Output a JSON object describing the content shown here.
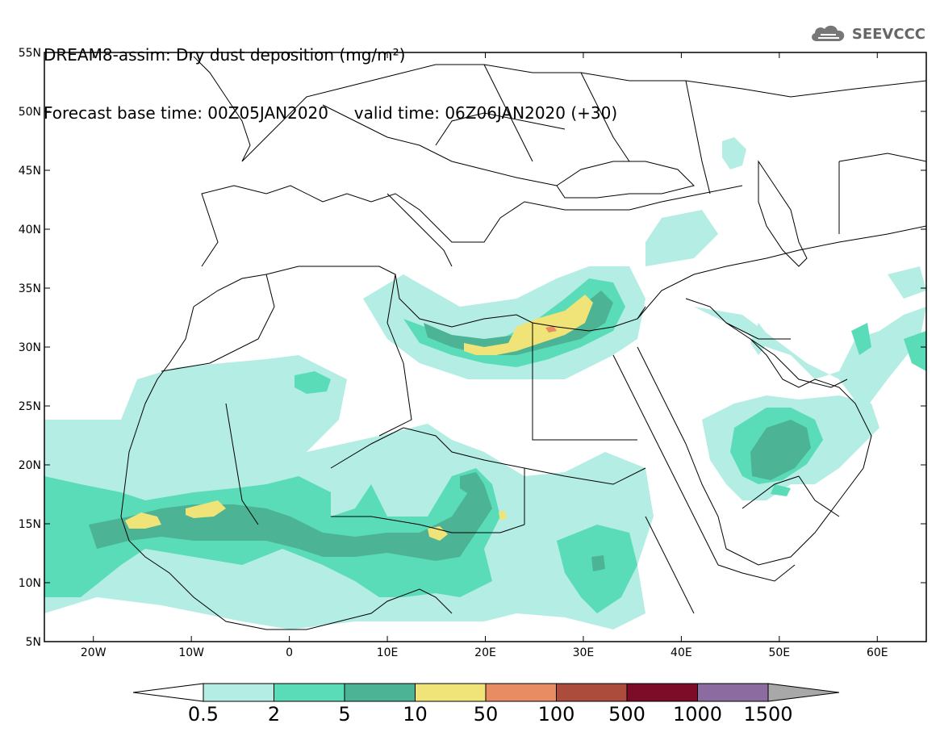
{
  "header": {
    "title": "DREAM8-assim: Dry dust deposition (mg/m²)",
    "forecast_line": "Forecast base time: 00Z05JAN2020     valid time: 06Z06JAN2020 (+30)"
  },
  "brand": {
    "name": "SEEVCCC",
    "logo_icon": "cloud-logo-icon",
    "color": "#666666"
  },
  "map": {
    "lon_range": [
      -25,
      65
    ],
    "lat_range": [
      5,
      55
    ],
    "lat_ticks": [
      "55N",
      "50N",
      "45N",
      "40N",
      "35N",
      "30N",
      "25N",
      "20N",
      "15N",
      "10N",
      "5N"
    ],
    "lon_ticks": [
      "20W",
      "10W",
      "0",
      "10E",
      "20E",
      "30E",
      "40E",
      "50E",
      "60E"
    ]
  },
  "colorbar": {
    "labels": [
      "0.5",
      "2",
      "5",
      "10",
      "50",
      "100",
      "500",
      "1000",
      "1500"
    ],
    "colors": [
      "#b4ede4",
      "#5adcb8",
      "#4cb494",
      "#f0e478",
      "#e88c64",
      "#ac4c3c",
      "#7c0c28",
      "#8c6ca0"
    ],
    "under_color": "#ffffff",
    "over_color": "#a8a8a8"
  }
}
